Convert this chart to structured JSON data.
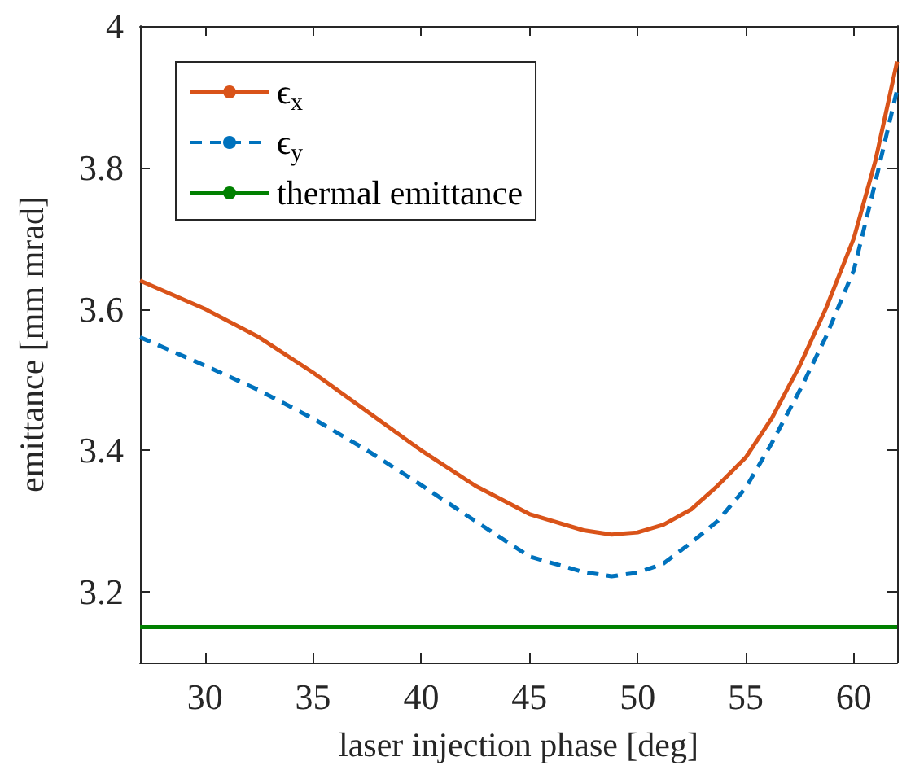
{
  "chart_data": {
    "type": "line",
    "xlabel": "laser injection phase [deg]",
    "ylabel": "emittance [mm mrad]",
    "xlim": [
      27,
      62
    ],
    "xticks": [
      30,
      35,
      40,
      45,
      50,
      55,
      60
    ],
    "ylim": [
      3.1,
      4
    ],
    "yticks": [
      3.2,
      3.4,
      3.6,
      3.8,
      4
    ],
    "grid": false,
    "legend": "top left",
    "marker": "none",
    "series": [
      {
        "name": "ϵ$_{x}$",
        "color": "#d95319",
        "line_style": "solid",
        "x": [
          27,
          30,
          32.5,
          35,
          37.5,
          40,
          42.5,
          45,
          47.5,
          48.8,
          50,
          51.2,
          52.5,
          53.7,
          55,
          56.2,
          57.5,
          58.7,
          60,
          61,
          62
        ],
        "values": [
          3.64,
          3.6,
          3.56,
          3.51,
          3.455,
          3.4,
          3.35,
          3.31,
          3.287,
          3.281,
          3.284,
          3.295,
          3.317,
          3.35,
          3.39,
          3.445,
          3.52,
          3.6,
          3.7,
          3.81,
          3.95
        ]
      },
      {
        "name": "ϵ$_{y}$",
        "color": "#0072bd",
        "line_style": "dashed",
        "x": [
          27,
          30,
          32.5,
          35,
          37.5,
          40,
          42.5,
          45,
          47.5,
          48.8,
          50,
          51.2,
          52.5,
          53.7,
          55,
          56.2,
          57.5,
          58.7,
          60,
          61,
          62
        ],
        "values": [
          3.56,
          3.52,
          3.485,
          3.445,
          3.4,
          3.351,
          3.3,
          3.25,
          3.228,
          3.222,
          3.227,
          3.24,
          3.27,
          3.3,
          3.347,
          3.41,
          3.485,
          3.56,
          3.655,
          3.78,
          3.91
        ]
      },
      {
        "name": "thermal emittance",
        "color": "#008000",
        "line_style": "solid",
        "x": [
          27,
          62
        ],
        "values": [
          3.15,
          3.15
        ]
      }
    ]
  }
}
